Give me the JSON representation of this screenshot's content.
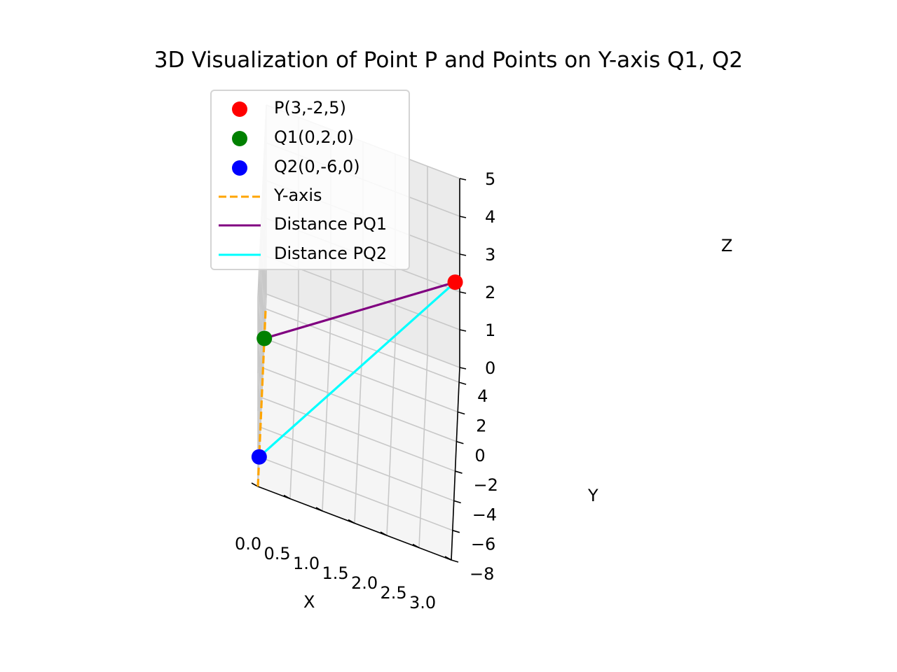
{
  "chart_data": {
    "type": "scatter",
    "title": "3D Visualization of Point P and Points on Y-axis Q1, Q2",
    "xlabel": "X",
    "ylabel": "Y",
    "zlabel": "Z",
    "xlim": [
      0,
      3
    ],
    "ylim": [
      -8,
      5
    ],
    "zlim": [
      0,
      5
    ],
    "x_ticks": [
      "0.0",
      "0.5",
      "1.0",
      "1.5",
      "2.0",
      "2.5",
      "3.0"
    ],
    "y_ticks": [
      "−8",
      "−6",
      "−4",
      "−2",
      "0",
      "2",
      "4"
    ],
    "z_ticks": [
      "0",
      "1",
      "2",
      "3",
      "4",
      "5"
    ],
    "grid": true,
    "legend_position": "upper-left",
    "points": [
      {
        "name": "P(3,-2,5)",
        "x": 3,
        "y": -2,
        "z": 5,
        "color": "#ff0000"
      },
      {
        "name": "Q1(0,2,0)",
        "x": 0,
        "y": 2,
        "z": 0,
        "color": "#008000"
      },
      {
        "name": "Q2(0,-6,0)",
        "x": 0,
        "y": -6,
        "z": 0,
        "color": "#0000ff"
      }
    ],
    "lines": [
      {
        "name": "Y-axis",
        "style": "dashed",
        "color": "#ffa500",
        "from": {
          "x": 0,
          "y": -8,
          "z": 0
        },
        "to": {
          "x": 0,
          "y": 4,
          "z": 0
        }
      },
      {
        "name": "Distance PQ1",
        "style": "solid",
        "color": "#800080",
        "from": {
          "x": 3,
          "y": -2,
          "z": 5
        },
        "to": {
          "x": 0,
          "y": 2,
          "z": 0
        }
      },
      {
        "name": "Distance PQ2",
        "style": "solid",
        "color": "#00ffff",
        "from": {
          "x": 3,
          "y": -2,
          "z": 5
        },
        "to": {
          "x": 0,
          "y": -6,
          "z": 0
        }
      }
    ]
  }
}
